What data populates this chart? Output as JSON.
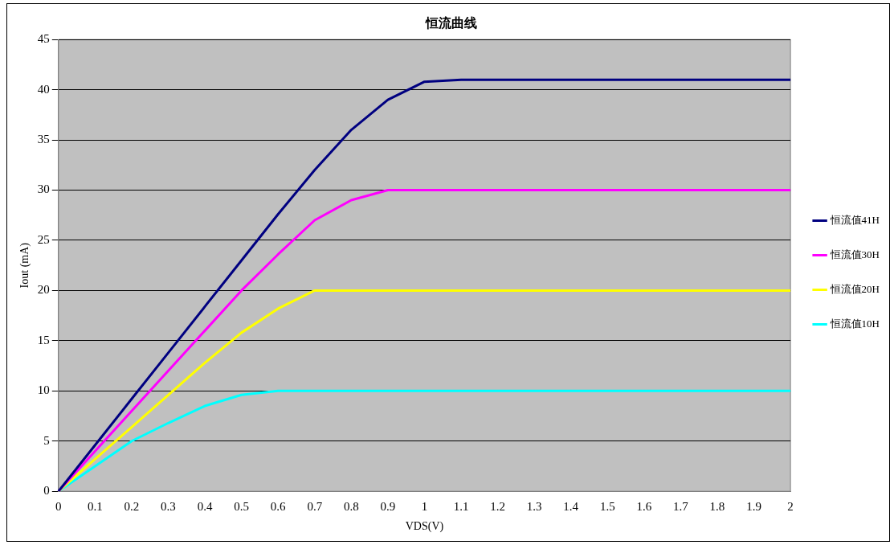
{
  "chart_data": {
    "type": "line",
    "title": "恒流曲线",
    "xlabel": "VDS(V)",
    "ylabel": "Iout (mA)",
    "categories": [
      "0",
      "0.1",
      "0.2",
      "0.3",
      "0.4",
      "0.5",
      "0.6",
      "0.7",
      "0.8",
      "0.9",
      "1",
      "1.1",
      "1.2",
      "1.3",
      "1.4",
      "1.5",
      "1.6",
      "1.7",
      "1.8",
      "1.9",
      "2"
    ],
    "series": [
      {
        "name": "恒流值41H",
        "color": "#000080",
        "values": [
          0,
          4.6,
          9.2,
          13.8,
          18.4,
          23,
          27.6,
          32,
          36,
          39,
          40.8,
          41,
          41,
          41,
          41,
          41,
          41,
          41,
          41,
          41,
          41
        ]
      },
      {
        "name": "恒流值30H",
        "color": "#ff00ff",
        "values": [
          0,
          4,
          8,
          12,
          16,
          20,
          23.6,
          27,
          29,
          30,
          30,
          30,
          30,
          30,
          30,
          30,
          30,
          30,
          30,
          30,
          30
        ]
      },
      {
        "name": "恒流值20H",
        "color": "#ffff00",
        "values": [
          0,
          3.2,
          6.4,
          9.6,
          12.8,
          15.8,
          18.2,
          20,
          20,
          20,
          20,
          20,
          20,
          20,
          20,
          20,
          20,
          20,
          20,
          20,
          20
        ]
      },
      {
        "name": "恒流值10H",
        "color": "#00ffff",
        "values": [
          0,
          2.5,
          5,
          6.8,
          8.5,
          9.6,
          10,
          10,
          10,
          10,
          10,
          10,
          10,
          10,
          10,
          10,
          10,
          10,
          10,
          10,
          10
        ]
      }
    ],
    "ylim": [
      0,
      45
    ],
    "yticks": [
      0,
      5,
      10,
      15,
      20,
      25,
      30,
      35,
      40,
      45
    ],
    "grid": "y",
    "legend": "right",
    "marker": "none",
    "line_style": "solid"
  }
}
